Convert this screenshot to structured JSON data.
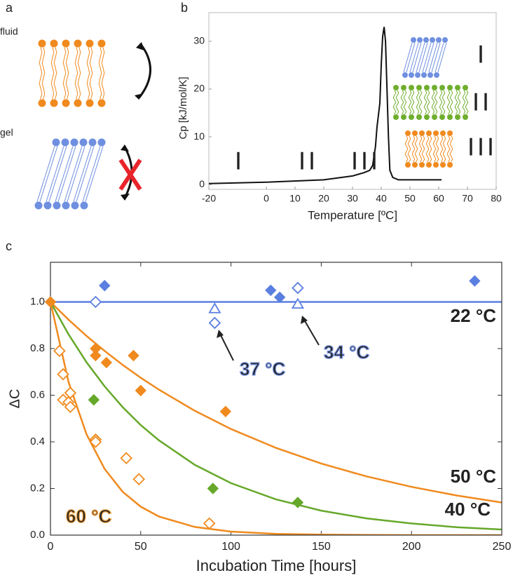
{
  "panel_labels": [
    "a",
    "b",
    "c"
  ],
  "panel_a": {
    "fluid": "fluid",
    "gel": "gel"
  },
  "chart_data": [
    {
      "type": "line",
      "x_label": "Temperature [ºC]",
      "y_label": "Cp [kJ/mol/K]",
      "xlim": [
        -20,
        80
      ],
      "ylim": [
        -1,
        36
      ],
      "xticks": [
        -20,
        0,
        10,
        20,
        30,
        40,
        50,
        60,
        70,
        80
      ],
      "yticks": [
        0,
        10,
        20,
        30
      ],
      "x": [
        -20,
        0,
        20,
        30,
        34,
        36,
        37,
        38,
        38.5,
        39.5,
        40,
        40.5,
        41,
        41.5,
        42,
        42.5,
        43,
        44,
        46,
        61
      ],
      "series": [
        {
          "color": "#111111",
          "values": [
            0.2,
            0.5,
            1,
            1.8,
            2.5,
            3,
            4,
            8,
            12,
            17,
            25,
            31,
            33,
            30,
            20,
            10,
            3,
            1.5,
            1,
            1
          ]
        }
      ],
      "annotations": [
        {
          "text": "I",
          "color": "#6f8fe0"
        },
        {
          "text": "II",
          "color": "#6fae2e"
        },
        {
          "text": "III",
          "color": "#f0922e"
        }
      ],
      "phase_labels": [
        {
          "text": "I",
          "color": "#6f8fe0"
        },
        {
          "text": "II",
          "color": "#6fae2e"
        },
        {
          "text": "III",
          "color": "#f0922e"
        }
      ]
    },
    {
      "type": "scatter",
      "x_label": "Incubation Time [hours]",
      "y_label": "ΔC",
      "xlim": [
        0,
        250
      ],
      "ylim": [
        0,
        1.17
      ],
      "xticks": [
        0,
        50,
        100,
        150,
        200,
        250
      ],
      "yticks": [
        {
          "value": 0,
          "label": "0.0"
        },
        0.2,
        0.4,
        0.6,
        0.8,
        {
          "value": 1,
          "label": "1.0"
        }
      ],
      "series": [
        {
          "marker": "diamond",
          "filled": true,
          "color": "#5b7fe0",
          "x": [
            0,
            30,
            122,
            127,
            235
          ],
          "values": [
            1.0,
            1.07,
            1.05,
            1.02,
            1.09
          ]
        },
        {
          "marker": "diamond",
          "filled": false,
          "color": "#5b7fe0",
          "x": [
            25,
            91,
            137
          ],
          "values": [
            1.0,
            0.91,
            1.06
          ]
        },
        {
          "marker": "triangle",
          "filled": false,
          "color": "#5b7fe0",
          "x": [
            91,
            137
          ],
          "values": [
            0.97,
            0.99
          ]
        },
        {
          "marker": "diamond",
          "filled": true,
          "color": "#f08a1e",
          "x": [
            0,
            25,
            25,
            31,
            46,
            50,
            97
          ],
          "values": [
            1.0,
            0.8,
            0.77,
            0.74,
            0.77,
            0.62,
            0.53
          ]
        },
        {
          "marker": "diamond",
          "filled": true,
          "color": "#66a82a",
          "x": [
            24,
            90,
            137
          ],
          "values": [
            0.58,
            0.2,
            0.14
          ]
        },
        {
          "marker": "diamond",
          "filled": false,
          "color": "#f08a1e",
          "x": [
            5,
            7,
            7,
            10,
            11,
            11,
            25,
            25,
            42,
            49,
            88
          ],
          "values": [
            0.79,
            0.69,
            0.58,
            0.57,
            0.61,
            0.55,
            0.41,
            0.4,
            0.33,
            0.24,
            0.05
          ]
        }
      ],
      "fit_x": [
        0,
        10,
        20,
        30,
        40,
        50,
        60,
        80,
        100,
        125,
        150,
        175,
        200,
        225,
        250
      ],
      "fits": [
        {
          "color": "#5b7fe0",
          "values": [
            1,
            1,
            1,
            1,
            1,
            1,
            1,
            1,
            1,
            1,
            1,
            1,
            1,
            1,
            1
          ]
        },
        {
          "color": "#f08a1e",
          "values": [
            1,
            0.924,
            0.854,
            0.79,
            0.73,
            0.675,
            0.624,
            0.533,
            0.455,
            0.374,
            0.307,
            0.252,
            0.207,
            0.17,
            0.14
          ]
        },
        {
          "color": "#66a82a",
          "values": [
            1,
            0.861,
            0.741,
            0.638,
            0.549,
            0.472,
            0.407,
            0.301,
            0.223,
            0.153,
            0.105,
            0.072,
            0.05,
            0.034,
            0.024
          ]
        },
        {
          "color": "#f08a1e",
          "values": [
            1,
            0.657,
            0.432,
            0.284,
            0.186,
            0.122,
            0.08,
            0.035,
            0.015,
            0.005,
            0.002,
            0.001,
            0,
            0,
            0
          ]
        }
      ],
      "annotations": [
        {
          "text": "22 °C",
          "color": "#5b7fe0",
          "outline": false
        },
        {
          "text": "50 °C",
          "color": "#f08a1e",
          "outline": false
        },
        {
          "text": "40 °C",
          "color": "#66a82a",
          "outline": false
        },
        {
          "text": "60 °C",
          "color": "#f0a040",
          "outline": true
        },
        {
          "text": "37 °C",
          "color": "#7f9ae6",
          "outline": true
        },
        {
          "text": "34 °C",
          "color": "#7f9ae6",
          "outline": true
        }
      ]
    }
  ]
}
